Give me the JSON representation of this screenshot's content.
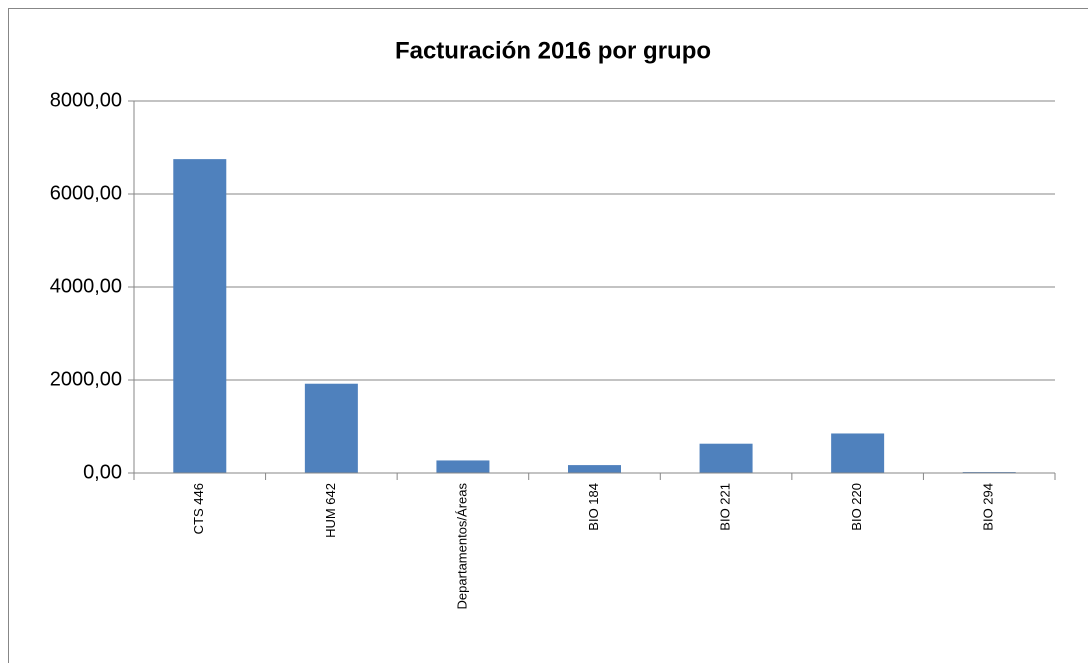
{
  "chart_data": {
    "type": "bar",
    "title": "Facturación 2016 por grupo",
    "categories": [
      "CTS 446",
      "HUM 642",
      "Departamentos/Áreas",
      "BIO 184",
      "BIO 221",
      "BIO 220",
      "BIO 294"
    ],
    "values": [
      6750,
      1920,
      270,
      170,
      630,
      850,
      20
    ],
    "color": "#4f81bd",
    "ylim": [
      0,
      8000
    ],
    "yticks": [
      {
        "value": 0,
        "label": "0,00"
      },
      {
        "value": 2000,
        "label": "2000,00"
      },
      {
        "value": 4000,
        "label": "4000,00"
      },
      {
        "value": 6000,
        "label": "6000,00"
      },
      {
        "value": 8000,
        "label": "8000,00"
      }
    ],
    "grid": true
  }
}
